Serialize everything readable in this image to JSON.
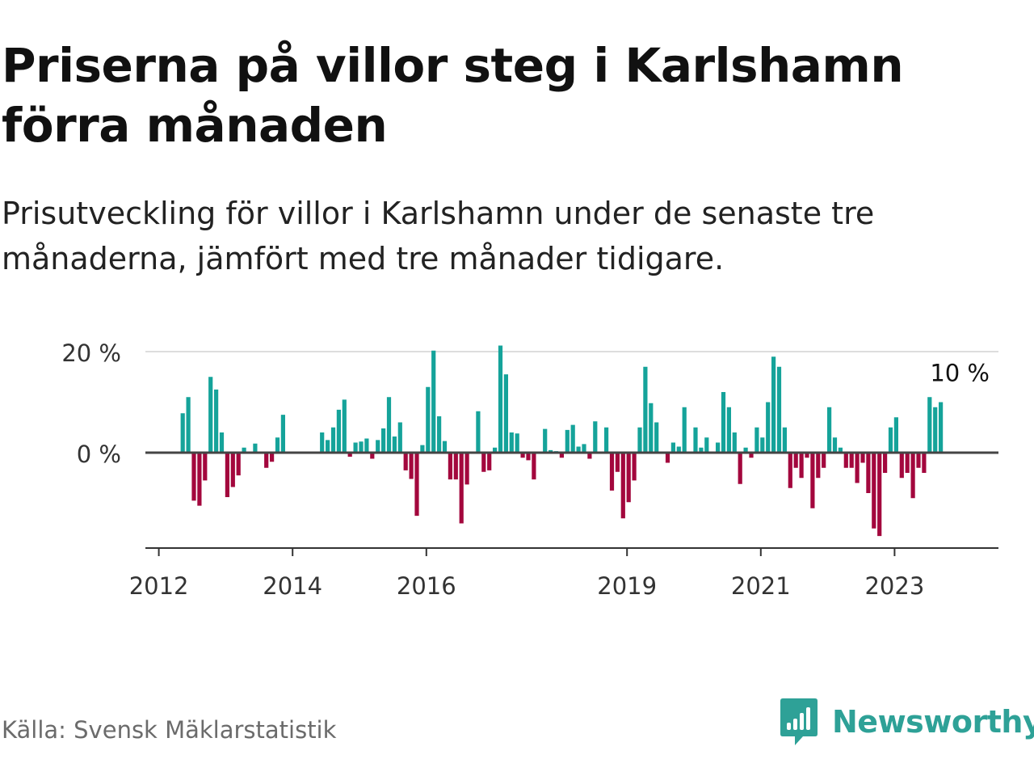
{
  "title": "Priserna på villor steg i Karlshamn förra månaden",
  "subtitle": "Prisutveckling för villor i Karlshamn under de senaste tre månaderna, jämfört med tre månader tidigare.",
  "source": "Källa: Svensk Mäklarstatistik",
  "brand": {
    "name": "Newsworthy",
    "icon": "newsworthy-logo-icon",
    "color": "#2ea197"
  },
  "colors": {
    "positive": "#15a39a",
    "negative": "#a3073d",
    "zero_line": "#444444",
    "grid": "#dddddd"
  },
  "chart_data": {
    "type": "bar",
    "x_start": "2012-01",
    "y_tick_values": [
      0,
      20
    ],
    "y_tick_labels": [
      "0 %",
      "20 %"
    ],
    "ylim": [
      -19,
      21
    ],
    "x_tick_labels": [
      "2012",
      "2014",
      "2016",
      "2019",
      "2021",
      "2023"
    ],
    "x_tick_months": [
      0,
      24,
      48,
      84,
      108,
      132
    ],
    "annotation": {
      "text": "10 %"
    },
    "values": [
      0,
      0,
      0,
      0,
      7.8,
      11,
      -9.5,
      -10.5,
      -5.5,
      15,
      12.5,
      4,
      -8.8,
      -6.8,
      -4.5,
      1,
      0,
      1.8,
      0,
      -3,
      -1.8,
      3,
      7.5,
      0,
      0,
      0,
      0,
      0,
      0,
      4,
      2.5,
      5,
      8.5,
      10.5,
      -0.8,
      2,
      2.2,
      2.8,
      -1.2,
      2.5,
      4.8,
      11,
      3.2,
      6,
      -3.5,
      -5.2,
      -12.5,
      1.5,
      13,
      20.2,
      7.2,
      2.3,
      -5.3,
      -5.3,
      -14,
      -6.3,
      0,
      8.2,
      -3.8,
      -3.5,
      1,
      21.2,
      15.5,
      4,
      3.8,
      -1,
      -1.5,
      -5.3,
      0,
      4.7,
      0.5,
      0.3,
      -1,
      4.5,
      5.5,
      1.2,
      1.7,
      -1.2,
      6.2,
      0,
      5,
      -7.5,
      -3.8,
      -13,
      -9.8,
      -5.5,
      5,
      17,
      9.8,
      6,
      0,
      -2,
      2,
      1.2,
      9,
      0,
      5,
      1,
      3,
      0,
      2,
      12,
      9,
      4,
      -6.2,
      1,
      -1,
      5,
      3,
      10,
      19,
      17,
      5,
      -7,
      -3,
      -5,
      -1,
      -11,
      -5,
      -3,
      9,
      3,
      1,
      -3,
      -3,
      -6,
      -2,
      -8,
      -15,
      -16.5,
      -4,
      5,
      7,
      -5,
      -4,
      -9,
      -3,
      -4,
      11,
      9,
      10
    ]
  }
}
